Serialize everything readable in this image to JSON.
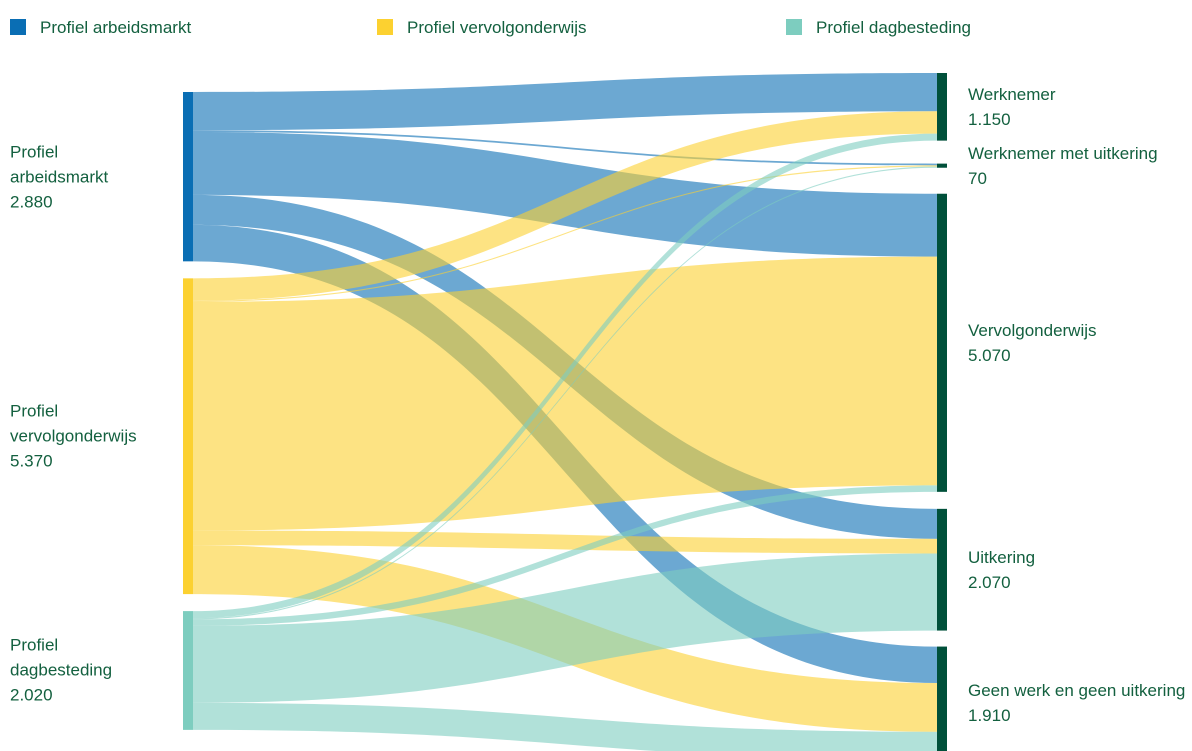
{
  "chart_data": {
    "type": "sankey",
    "nodes": [
      {
        "name": "Profiel arbeidsmarkt",
        "value": 2880,
        "value_label": "2.880",
        "color": "#0a6eb4"
      },
      {
        "name": "Profiel vervolgonderwijs",
        "value": 5370,
        "value_label": "5.370",
        "color": "#fcd130"
      },
      {
        "name": "Profiel dagbesteding",
        "value": 2020,
        "value_label": "2.020",
        "color": "#7dcdbf"
      },
      {
        "name": "Werknemer",
        "value": 1150,
        "value_label": "1.150",
        "color": "#00503a"
      },
      {
        "name": "Werknemer met uitkering",
        "value": 70,
        "value_label": "70",
        "color": "#00503a"
      },
      {
        "name": "Vervolgonderwijs",
        "value": 5070,
        "value_label": "5.070",
        "color": "#00503a"
      },
      {
        "name": "Uitkering",
        "value": 2070,
        "value_label": "2.070",
        "color": "#00503a"
      },
      {
        "name": "Geen werk en geen uitkering",
        "value": 1910,
        "value_label": "1.910",
        "color": "#00503a"
      }
    ],
    "links": [
      {
        "source": 0,
        "target": 3,
        "value": 650
      },
      {
        "source": 0,
        "target": 4,
        "value": 30
      },
      {
        "source": 0,
        "target": 5,
        "value": 1070
      },
      {
        "source": 0,
        "target": 6,
        "value": 510
      },
      {
        "source": 0,
        "target": 7,
        "value": 620
      },
      {
        "source": 1,
        "target": 3,
        "value": 380
      },
      {
        "source": 1,
        "target": 4,
        "value": 20
      },
      {
        "source": 1,
        "target": 5,
        "value": 3890
      },
      {
        "source": 1,
        "target": 6,
        "value": 250
      },
      {
        "source": 1,
        "target": 7,
        "value": 830
      },
      {
        "source": 2,
        "target": 3,
        "value": 120
      },
      {
        "source": 2,
        "target": 4,
        "value": 20
      },
      {
        "source": 2,
        "target": 5,
        "value": 110
      },
      {
        "source": 2,
        "target": 6,
        "value": 1310
      },
      {
        "source": 2,
        "target": 7,
        "value": 460
      }
    ],
    "legend": [
      0,
      1,
      2
    ]
  }
}
